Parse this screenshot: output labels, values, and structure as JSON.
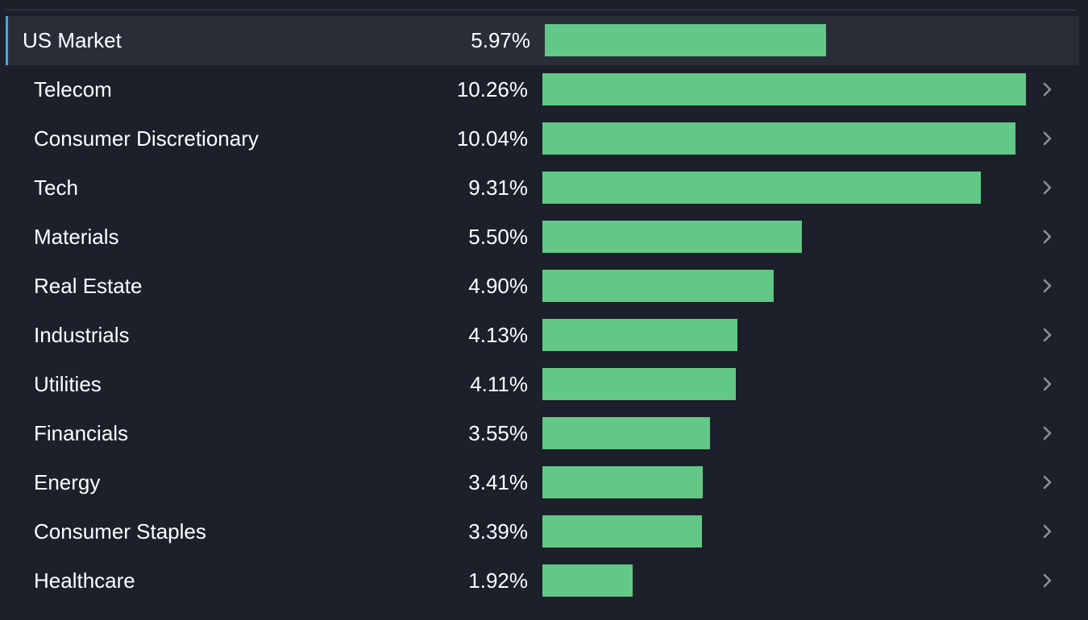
{
  "chart_data": {
    "type": "bar",
    "orientation": "horizontal",
    "summary": {
      "name": "US Market",
      "value": 5.97,
      "label": "5.97%"
    },
    "categories": [
      "Telecom",
      "Consumer Discretionary",
      "Tech",
      "Materials",
      "Real Estate",
      "Industrials",
      "Utilities",
      "Financials",
      "Energy",
      "Consumer Staples",
      "Healthcare"
    ],
    "values": [
      10.26,
      10.04,
      9.31,
      5.5,
      4.9,
      4.13,
      4.11,
      3.55,
      3.41,
      3.39,
      1.92
    ],
    "value_labels": [
      "10.26%",
      "10.04%",
      "9.31%",
      "5.50%",
      "4.90%",
      "4.13%",
      "4.11%",
      "3.55%",
      "3.41%",
      "3.39%",
      "1.92%"
    ],
    "title": "",
    "xlabel": "",
    "ylabel": "",
    "xlim": [
      0,
      10.26
    ],
    "grid": false,
    "legend": "none",
    "bar_color": "#62c787",
    "accent_color": "#4aa8d8",
    "background_color": "#1b202a",
    "row_icon": "chevron-right-icon"
  }
}
